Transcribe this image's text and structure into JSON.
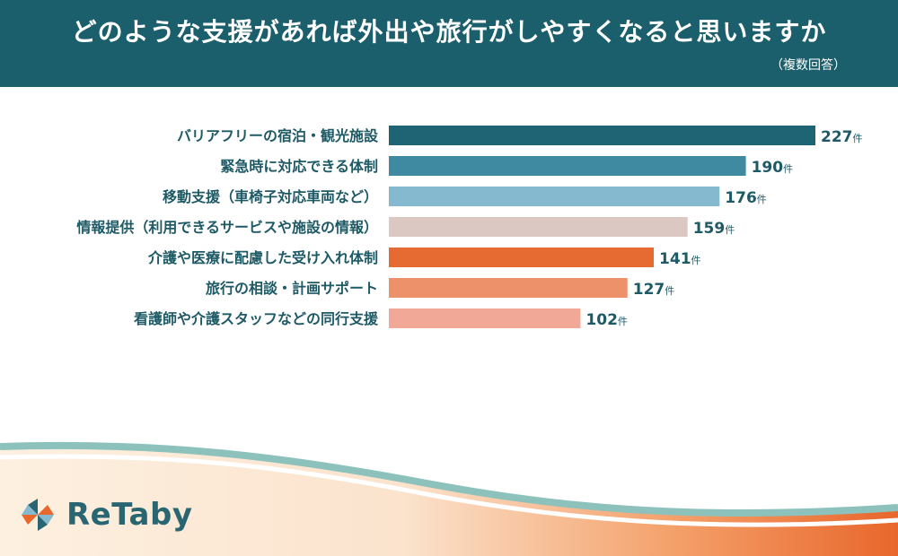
{
  "header": {
    "title": "どのような支援があれば外出や旅行がしやすくなると思いますか",
    "subtitle": "（複数回答）"
  },
  "brand": {
    "name": "ReTaby"
  },
  "colors": {
    "header_bg": "#1c5f6c",
    "bars": [
      "#1e6474",
      "#3f8aa0",
      "#84b9cf",
      "#dcc8c2",
      "#e56b33",
      "#ec9169",
      "#f2a897"
    ],
    "value_text": "#1e5a66"
  },
  "chart_data": {
    "type": "bar",
    "orientation": "horizontal",
    "categories": [
      "バリアフリーの宿泊・観光施設",
      "緊急時に対応できる体制",
      "移動支援（車椅子対応車両など）",
      "情報提供（利用できるサービスや施設の情報）",
      "介護や医療に配慮した受け入れ体制",
      "旅行の相談・計画サポート",
      "看護師や介護スタッフなどの同行支援"
    ],
    "values": [
      227,
      190,
      176,
      159,
      141,
      127,
      102
    ],
    "unit": "件",
    "xlim": [
      0,
      227
    ],
    "grid": false
  }
}
